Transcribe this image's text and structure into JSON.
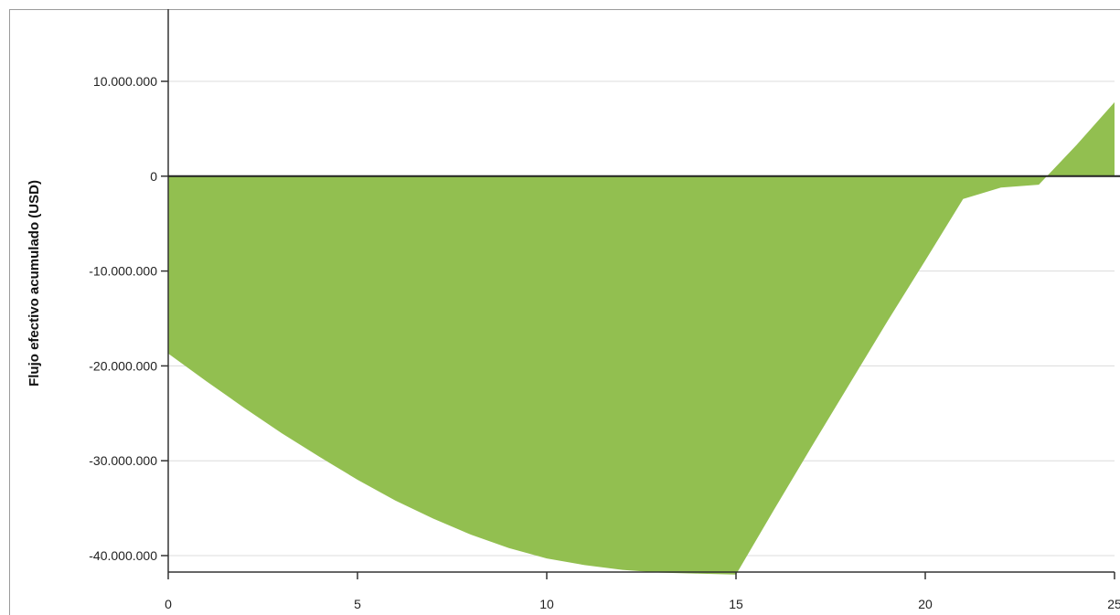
{
  "chart_data": {
    "type": "area",
    "title": "",
    "xlabel": "",
    "ylabel": "Flujo efectivo acumulado (USD)",
    "xlim": [
      0,
      25
    ],
    "ylim": [
      -42000000,
      17000000
    ],
    "x_ticks": [
      0,
      5,
      10,
      15,
      20,
      25
    ],
    "y_ticks": [
      10000000,
      0,
      -10000000,
      -20000000,
      -30000000,
      -40000000
    ],
    "x_tick_labels": [
      "0",
      "5",
      "10",
      "15",
      "20",
      "25"
    ],
    "y_tick_labels": [
      "10.000.000",
      "0",
      "-10.000.000",
      "-20.000.000",
      "-30.000.000",
      "-40.000.000"
    ],
    "grid": true,
    "fill_color": "#92bf50",
    "series": [
      {
        "x": [
          0,
          1,
          2,
          3,
          4,
          5,
          6,
          7,
          8,
          9,
          10,
          11,
          12,
          13,
          14,
          15,
          16,
          17,
          18,
          19,
          20,
          21,
          22,
          23,
          24,
          25
        ],
        "values": [
          -18700000,
          -21600000,
          -24400000,
          -27100000,
          -29600000,
          -32000000,
          -34200000,
          -36100000,
          -37800000,
          -39200000,
          -40300000,
          -41000000,
          -41500000,
          -41800000,
          -41900000,
          -42000000,
          -35200000,
          -28500000,
          -21900000,
          -15300000,
          -8900000,
          -2400000,
          -1200000,
          -900000,
          3300000,
          7800000
        ]
      }
    ]
  }
}
